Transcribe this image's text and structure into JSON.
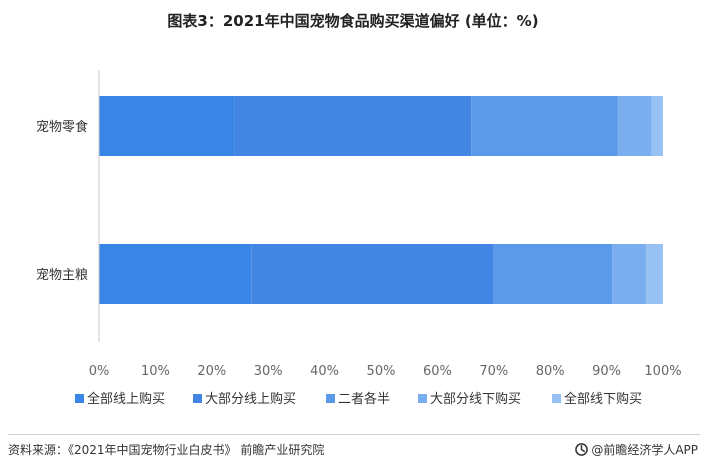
{
  "title": "图表3：2021年中国宠物食品购买渠道偏好 (单位：%)",
  "footer": {
    "source": "资料来源：《2021年中国宠物行业白皮书》 前瞻产业研究院",
    "brand": "@前瞻经济学人APP",
    "brand_icon": "qianzhan-logo-icon"
  },
  "chart_data": {
    "type": "bar",
    "orientation": "horizontal",
    "stacked": true,
    "categories": [
      "宠物零食",
      "宠物主粮"
    ],
    "series": [
      {
        "name": "全部线上购买",
        "color": "#3a86e6",
        "values": [
          24,
          27
        ]
      },
      {
        "name": "大部分线上购买",
        "color": "#4285e3",
        "values": [
          42,
          43
        ]
      },
      {
        "name": "二者各半",
        "color": "#5a9ae8",
        "values": [
          26,
          21
        ]
      },
      {
        "name": "大部分线下购买",
        "color": "#7aaeee",
        "values": [
          6,
          6
        ]
      },
      {
        "name": "全部线下购买",
        "color": "#98c1f3",
        "values": [
          2,
          3
        ]
      }
    ],
    "x_ticks": [
      "0%",
      "10%",
      "20%",
      "30%",
      "40%",
      "50%",
      "60%",
      "70%",
      "80%",
      "90%",
      "100%"
    ],
    "xlim": [
      0,
      100
    ],
    "grid": false,
    "legend_position": "bottom"
  }
}
